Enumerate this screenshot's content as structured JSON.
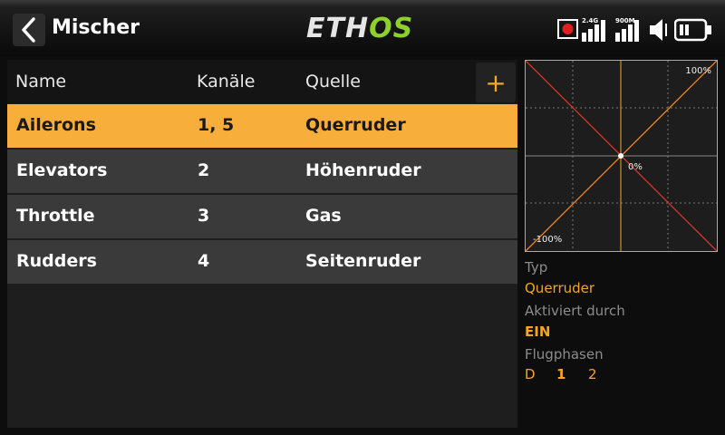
{
  "header": {
    "title": "Mischer",
    "logo_part1": "ETH",
    "logo_part2": "OS",
    "signal_24": "2.4G",
    "signal_900": "900M"
  },
  "table": {
    "columns": [
      "Name",
      "Kanäle",
      "Quelle"
    ],
    "add_label": "+",
    "rows": [
      {
        "name": "Ailerons",
        "channels": "1, 5",
        "source": "Querruder"
      },
      {
        "name": "Elevators",
        "channels": "2",
        "source": "Höhenruder"
      },
      {
        "name": "Throttle",
        "channels": "3",
        "source": "Gas"
      },
      {
        "name": "Rudders",
        "channels": "4",
        "source": "Seitenruder"
      }
    ],
    "selected_row": "Ailerons"
  },
  "graph": {
    "label_max": "100%",
    "label_center": "0%",
    "label_min": "-100%"
  },
  "details": {
    "type_label": "Typ",
    "type_value": "Querruder",
    "active_label": "Aktiviert durch",
    "active_value": "EIN",
    "phases_label": "Flugphasen",
    "phases": [
      "D",
      "1",
      "2"
    ]
  },
  "colors": {
    "accent": "#f5a623",
    "selected_row": "#f7ae3a",
    "logo_green": "#8fd12c",
    "curve_red": "#d9362b",
    "record_red": "#e02020"
  }
}
